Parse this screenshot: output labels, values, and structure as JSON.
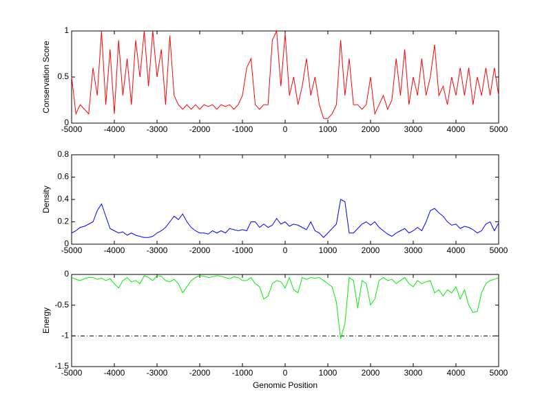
{
  "chart_data": [
    {
      "type": "line",
      "ylabel": "Conservation Score",
      "x": [
        -5000,
        -4900,
        -4800,
        -4700,
        -4600,
        -4500,
        -4400,
        -4300,
        -4200,
        -4100,
        -4000,
        -3900,
        -3800,
        -3700,
        -3600,
        -3500,
        -3400,
        -3300,
        -3200,
        -3100,
        -3000,
        -2900,
        -2800,
        -2700,
        -2600,
        -2500,
        -2400,
        -2300,
        -2200,
        -2100,
        -2000,
        -1900,
        -1800,
        -1700,
        -1600,
        -1500,
        -1400,
        -1300,
        -1200,
        -1100,
        -1000,
        -900,
        -800,
        -700,
        -600,
        -500,
        -400,
        -300,
        -200,
        -100,
        0,
        100,
        200,
        300,
        400,
        500,
        600,
        700,
        800,
        900,
        1000,
        1100,
        1200,
        1300,
        1400,
        1500,
        1600,
        1700,
        1800,
        1900,
        2000,
        2100,
        2200,
        2300,
        2400,
        2500,
        2600,
        2700,
        2800,
        2900,
        3000,
        3100,
        3200,
        3300,
        3400,
        3500,
        3600,
        3700,
        3800,
        3900,
        4000,
        4100,
        4200,
        4300,
        4400,
        4500,
        4600,
        4700,
        4800,
        4900,
        5000
      ],
      "series": [
        {
          "color": "#ff0000",
          "values": [
            0.5,
            0.1,
            0.2,
            0.15,
            0.1,
            0.6,
            0.3,
            1,
            0.2,
            0.8,
            0.1,
            0.9,
            0.3,
            0.7,
            0.2,
            0.9,
            0.5,
            1,
            0.4,
            1,
            0.5,
            0.8,
            0.2,
            0.95,
            0.3,
            0.2,
            0.15,
            0.2,
            0.15,
            0.2,
            0.15,
            0.2,
            0.18,
            0.2,
            0.15,
            0.2,
            0.18,
            0.2,
            0.15,
            0.2,
            0.3,
            0.6,
            0.7,
            0.2,
            0.15,
            0.2,
            0.2,
            0.9,
            1,
            0.4,
            0.97,
            0.3,
            0.5,
            0.2,
            0.4,
            0.7,
            0.3,
            0.5,
            0.2,
            0.05,
            0.05,
            0.1,
            0.2,
            0.9,
            0.3,
            0.7,
            0.2,
            0.2,
            0.15,
            0.2,
            0.5,
            0.1,
            0.2,
            0.3,
            0.15,
            0.25,
            0.7,
            0.3,
            0.8,
            0.2,
            0.5,
            0.3,
            0.7,
            0.3,
            0.5,
            0.85,
            0.3,
            0.4,
            0.2,
            0.5,
            0.3,
            0.6,
            0.3,
            0.6,
            0.2,
            0.5,
            0.3,
            0.6,
            0.3,
            0.6,
            0.3
          ]
        }
      ],
      "xlim": [
        -5000,
        5000
      ],
      "xticks": [
        -5000,
        -4000,
        -3000,
        -2000,
        -1000,
        0,
        1000,
        2000,
        3000,
        4000,
        5000
      ],
      "ylim": [
        0,
        1
      ],
      "yticks": [
        0,
        0.5,
        1
      ]
    },
    {
      "type": "line",
      "ylabel": "Density",
      "x": [
        -5000,
        -4900,
        -4800,
        -4700,
        -4600,
        -4500,
        -4400,
        -4300,
        -4200,
        -4100,
        -4000,
        -3900,
        -3800,
        -3700,
        -3600,
        -3500,
        -3400,
        -3300,
        -3200,
        -3100,
        -3000,
        -2900,
        -2800,
        -2700,
        -2600,
        -2500,
        -2400,
        -2300,
        -2200,
        -2100,
        -2000,
        -1900,
        -1800,
        -1700,
        -1600,
        -1500,
        -1400,
        -1300,
        -1200,
        -1100,
        -1000,
        -900,
        -800,
        -700,
        -600,
        -500,
        -400,
        -300,
        -200,
        -100,
        0,
        100,
        200,
        300,
        400,
        500,
        600,
        700,
        800,
        900,
        1000,
        1100,
        1200,
        1300,
        1400,
        1500,
        1600,
        1700,
        1800,
        1900,
        2000,
        2100,
        2200,
        2300,
        2400,
        2500,
        2600,
        2700,
        2800,
        2900,
        3000,
        3100,
        3200,
        3300,
        3400,
        3500,
        3600,
        3700,
        3800,
        3900,
        4000,
        4100,
        4200,
        4300,
        4400,
        4500,
        4600,
        4700,
        4800,
        4900,
        5000
      ],
      "series": [
        {
          "color": "#0000ff",
          "values": [
            0.1,
            0.12,
            0.15,
            0.16,
            0.18,
            0.2,
            0.3,
            0.36,
            0.25,
            0.14,
            0.12,
            0.1,
            0.11,
            0.08,
            0.1,
            0.08,
            0.07,
            0.06,
            0.06,
            0.07,
            0.1,
            0.12,
            0.15,
            0.2,
            0.25,
            0.22,
            0.27,
            0.2,
            0.15,
            0.12,
            0.1,
            0.1,
            0.09,
            0.12,
            0.1,
            0.12,
            0.1,
            0.14,
            0.13,
            0.12,
            0.13,
            0.12,
            0.2,
            0.2,
            0.15,
            0.18,
            0.15,
            0.17,
            0.23,
            0.18,
            0.2,
            0.16,
            0.18,
            0.17,
            0.15,
            0.13,
            0.2,
            0.12,
            0.1,
            0.06,
            0.1,
            0.14,
            0.18,
            0.4,
            0.38,
            0.1,
            0.1,
            0.14,
            0.18,
            0.2,
            0.17,
            0.2,
            0.15,
            0.12,
            0.09,
            0.07,
            0.1,
            0.12,
            0.14,
            0.1,
            0.12,
            0.15,
            0.12,
            0.2,
            0.3,
            0.32,
            0.28,
            0.25,
            0.2,
            0.17,
            0.18,
            0.14,
            0.16,
            0.15,
            0.13,
            0.1,
            0.12,
            0.18,
            0.2,
            0.12,
            0.19
          ]
        }
      ],
      "xlim": [
        -5000,
        5000
      ],
      "xticks": [
        -5000,
        -4000,
        -3000,
        -2000,
        -1000,
        0,
        1000,
        2000,
        3000,
        4000,
        5000
      ],
      "ylim": [
        0,
        0.8
      ],
      "yticks": [
        0,
        0.2,
        0.4,
        0.6,
        0.8
      ]
    },
    {
      "type": "line",
      "ylabel": "Energy",
      "xlabel": "Genomic Position",
      "x": [
        -5000,
        -4900,
        -4800,
        -4700,
        -4600,
        -4500,
        -4400,
        -4300,
        -4200,
        -4100,
        -4000,
        -3900,
        -3800,
        -3700,
        -3600,
        -3500,
        -3400,
        -3300,
        -3200,
        -3100,
        -3000,
        -2900,
        -2800,
        -2700,
        -2600,
        -2500,
        -2400,
        -2300,
        -2200,
        -2100,
        -2000,
        -1900,
        -1800,
        -1700,
        -1600,
        -1500,
        -1400,
        -1300,
        -1200,
        -1100,
        -1000,
        -900,
        -800,
        -700,
        -600,
        -500,
        -400,
        -300,
        -200,
        -100,
        0,
        100,
        200,
        300,
        400,
        500,
        600,
        700,
        800,
        900,
        1000,
        1100,
        1200,
        1300,
        1400,
        1500,
        1600,
        1700,
        1800,
        1900,
        2000,
        2100,
        2200,
        2300,
        2400,
        2500,
        2600,
        2700,
        2800,
        2900,
        3000,
        3100,
        3200,
        3300,
        3400,
        3500,
        3600,
        3700,
        3800,
        3900,
        4000,
        4100,
        4200,
        4300,
        4400,
        4500,
        4600,
        4700,
        4800,
        4900,
        5000
      ],
      "series": [
        {
          "color": "#00ee00",
          "values": [
            -0.05,
            -0.08,
            -0.1,
            -0.07,
            -0.05,
            -0.05,
            -0.08,
            -0.06,
            -0.1,
            -0.07,
            -0.15,
            -0.22,
            -0.1,
            -0.05,
            -0.12,
            -0.1,
            -0.15,
            -0.02,
            -0.05,
            -0.1,
            -0.02,
            -0.03,
            -0.1,
            -0.12,
            -0.08,
            -0.15,
            -0.3,
            -0.2,
            -0.1,
            -0.05,
            -0.02,
            -0.03,
            -0.05,
            -0.04,
            -0.02,
            -0.03,
            -0.05,
            -0.07,
            -0.04,
            -0.05,
            -0.1,
            -0.1,
            -0.05,
            -0.15,
            -0.2,
            -0.4,
            -0.35,
            -0.15,
            -0.1,
            -0.12,
            -0.22,
            -0.05,
            -0.25,
            -0.3,
            -0.05,
            -0.08,
            -0.05,
            -0.06,
            -0.05,
            -0.1,
            -0.15,
            -0.2,
            -0.45,
            -1.05,
            -0.8,
            -0.05,
            -0.1,
            -0.55,
            -0.1,
            -0.15,
            -0.5,
            -0.4,
            -0.1,
            -0.05,
            -0.1,
            -0.08,
            -0.15,
            -0.1,
            -0.05,
            -0.15,
            -0.2,
            -0.1,
            -0.15,
            -0.12,
            -0.1,
            -0.3,
            -0.25,
            -0.35,
            -0.25,
            -0.3,
            -0.2,
            -0.4,
            -0.25,
            -0.5,
            -0.62,
            -0.6,
            -0.3,
            -0.15,
            -0.1,
            -0.08,
            -0.05
          ]
        }
      ],
      "hline": -1,
      "xlim": [
        -5000,
        5000
      ],
      "xticks": [
        -5000,
        -4000,
        -3000,
        -2000,
        -1000,
        0,
        1000,
        2000,
        3000,
        4000,
        5000
      ],
      "ylim": [
        -1.5,
        0
      ],
      "yticks": [
        -1.5,
        -1,
        -0.5,
        0
      ]
    }
  ]
}
